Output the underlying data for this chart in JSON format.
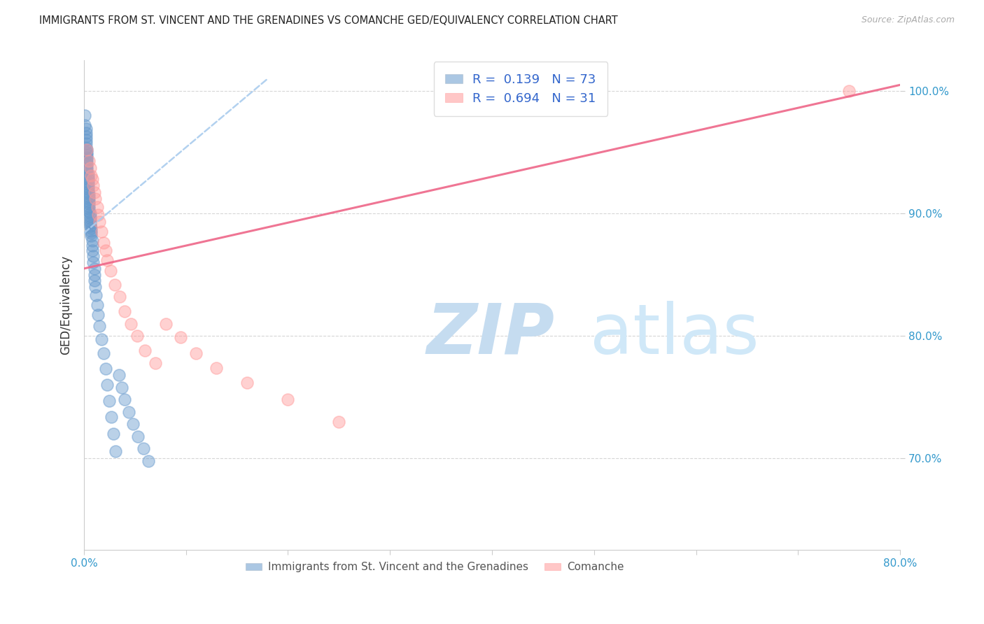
{
  "title": "IMMIGRANTS FROM ST. VINCENT AND THE GRENADINES VS COMANCHE GED/EQUIVALENCY CORRELATION CHART",
  "source": "Source: ZipAtlas.com",
  "ylabel": "GED/Equivalency",
  "xmin": 0.0,
  "xmax": 0.8,
  "ymin": 0.625,
  "ymax": 1.025,
  "xticks": [
    0.0,
    0.1,
    0.2,
    0.3,
    0.4,
    0.5,
    0.6,
    0.7,
    0.8
  ],
  "xticklabels": [
    "0.0%",
    "",
    "",
    "",
    "",
    "",
    "",
    "",
    "80.0%"
  ],
  "yticks": [
    0.7,
    0.8,
    0.9,
    1.0
  ],
  "yticklabels": [
    "70.0%",
    "80.0%",
    "90.0%",
    "100.0%"
  ],
  "blue_r": 0.139,
  "blue_n": 73,
  "pink_r": 0.694,
  "pink_n": 31,
  "blue_color": "#6699CC",
  "pink_color": "#FF9999",
  "trend_blue_color": "#AACCEE",
  "trend_pink_color": "#EE6688",
  "watermark_zip": "ZIP",
  "watermark_atlas": "atlas",
  "watermark_color_zip": "#C8DDEF",
  "watermark_color_atlas": "#C8DDEF",
  "blue_scatter_x": [
    0.001,
    0.001,
    0.002,
    0.002,
    0.002,
    0.002,
    0.002,
    0.002,
    0.003,
    0.003,
    0.003,
    0.003,
    0.003,
    0.003,
    0.003,
    0.003,
    0.003,
    0.003,
    0.004,
    0.004,
    0.004,
    0.004,
    0.004,
    0.004,
    0.004,
    0.004,
    0.005,
    0.005,
    0.005,
    0.005,
    0.005,
    0.005,
    0.005,
    0.005,
    0.006,
    0.006,
    0.006,
    0.006,
    0.006,
    0.006,
    0.007,
    0.007,
    0.007,
    0.007,
    0.008,
    0.008,
    0.008,
    0.009,
    0.009,
    0.01,
    0.01,
    0.01,
    0.011,
    0.012,
    0.013,
    0.014,
    0.015,
    0.017,
    0.019,
    0.021,
    0.023,
    0.025,
    0.027,
    0.029,
    0.031,
    0.034,
    0.037,
    0.04,
    0.044,
    0.048,
    0.053,
    0.058,
    0.063
  ],
  "blue_scatter_y": [
    0.98,
    0.972,
    0.969,
    0.966,
    0.963,
    0.96,
    0.957,
    0.954,
    0.952,
    0.95,
    0.948,
    0.946,
    0.944,
    0.942,
    0.94,
    0.938,
    0.936,
    0.934,
    0.932,
    0.93,
    0.928,
    0.926,
    0.924,
    0.922,
    0.92,
    0.918,
    0.916,
    0.914,
    0.912,
    0.91,
    0.908,
    0.906,
    0.904,
    0.902,
    0.9,
    0.898,
    0.896,
    0.894,
    0.892,
    0.89,
    0.888,
    0.886,
    0.884,
    0.882,
    0.878,
    0.874,
    0.87,
    0.865,
    0.86,
    0.855,
    0.85,
    0.845,
    0.84,
    0.833,
    0.825,
    0.817,
    0.808,
    0.797,
    0.786,
    0.773,
    0.76,
    0.747,
    0.734,
    0.72,
    0.706,
    0.768,
    0.758,
    0.748,
    0.738,
    0.728,
    0.718,
    0.708,
    0.698
  ],
  "pink_scatter_x": [
    0.003,
    0.005,
    0.006,
    0.007,
    0.008,
    0.009,
    0.01,
    0.011,
    0.013,
    0.014,
    0.015,
    0.017,
    0.019,
    0.021,
    0.023,
    0.026,
    0.03,
    0.035,
    0.04,
    0.046,
    0.052,
    0.06,
    0.07,
    0.08,
    0.095,
    0.11,
    0.13,
    0.16,
    0.2,
    0.25,
    0.75
  ],
  "pink_scatter_y": [
    0.952,
    0.943,
    0.937,
    0.931,
    0.928,
    0.923,
    0.917,
    0.912,
    0.905,
    0.899,
    0.893,
    0.885,
    0.876,
    0.87,
    0.862,
    0.853,
    0.842,
    0.832,
    0.82,
    0.81,
    0.8,
    0.788,
    0.778,
    0.81,
    0.799,
    0.786,
    0.774,
    0.762,
    0.748,
    0.73,
    1.0
  ],
  "blue_trend_x0": 0.0,
  "blue_trend_y0": 0.884,
  "blue_trend_x1": 0.18,
  "blue_trend_y1": 1.01,
  "pink_trend_x0": 0.0,
  "pink_trend_y0": 0.855,
  "pink_trend_x1": 0.8,
  "pink_trend_y1": 1.005
}
